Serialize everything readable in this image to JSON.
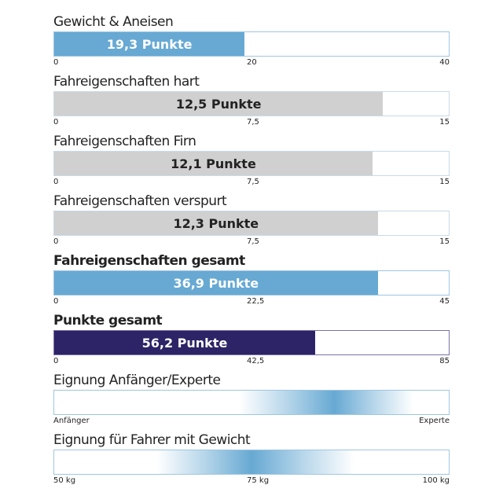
{
  "colors": {
    "blue": "#67a9d3",
    "gray": "#d0d0d0",
    "navy": "#2c2466",
    "white_text": "#ffffff",
    "dark_text": "#222222"
  },
  "chart_data": [
    {
      "type": "bar",
      "title": "Gewicht & Aneisen",
      "value": 19.3,
      "label": "19,3 Punkte",
      "xlim": [
        0,
        40
      ],
      "ticks": [
        "0",
        "20",
        "40"
      ],
      "color": "blue",
      "bold_title": false
    },
    {
      "type": "bar",
      "title": "Fahreigenschaften hart",
      "value": 12.5,
      "label": "12,5 Punkte",
      "xlim": [
        0,
        15
      ],
      "ticks": [
        "0",
        "7,5",
        "15"
      ],
      "color": "gray",
      "bold_title": false
    },
    {
      "type": "bar",
      "title": "Fahreigenschaften Firn",
      "value": 12.1,
      "label": "12,1 Punkte",
      "xlim": [
        0,
        15
      ],
      "ticks": [
        "0",
        "7,5",
        "15"
      ],
      "color": "gray",
      "bold_title": false
    },
    {
      "type": "bar",
      "title": "Fahreigenschaften verspurt",
      "value": 12.3,
      "label": "12,3 Punkte",
      "xlim": [
        0,
        15
      ],
      "ticks": [
        "0",
        "7,5",
        "15"
      ],
      "color": "gray",
      "bold_title": false
    },
    {
      "type": "bar",
      "title": "Fahreigenschaften gesamt",
      "value": 36.9,
      "label": "36,9 Punkte",
      "xlim": [
        0,
        45
      ],
      "ticks": [
        "0",
        "22,5",
        "45"
      ],
      "color": "blue",
      "bold_title": true
    },
    {
      "type": "bar",
      "title": "Punkte gesamt",
      "value": 56.2,
      "label": "56,2 Punkte",
      "xlim": [
        0,
        85
      ],
      "ticks": [
        "0",
        "42,5",
        "85"
      ],
      "color": "navy",
      "bold_title": true
    },
    {
      "type": "heatmap",
      "title": "Eignung Anfänger/Experte",
      "peak_fraction": 0.71,
      "spread_start": 0.47,
      "spread_end": 0.91,
      "ticks": [
        "Anfänger",
        "Experte"
      ]
    },
    {
      "type": "heatmap",
      "title": "Eignung für Fahrer mit Gewicht",
      "peak_value": 75,
      "xlim": [
        50,
        100
      ],
      "spread_start_value": 63,
      "spread_end_value": 88,
      "ticks": [
        "50 kg",
        "75 kg",
        "100 kg"
      ]
    }
  ]
}
